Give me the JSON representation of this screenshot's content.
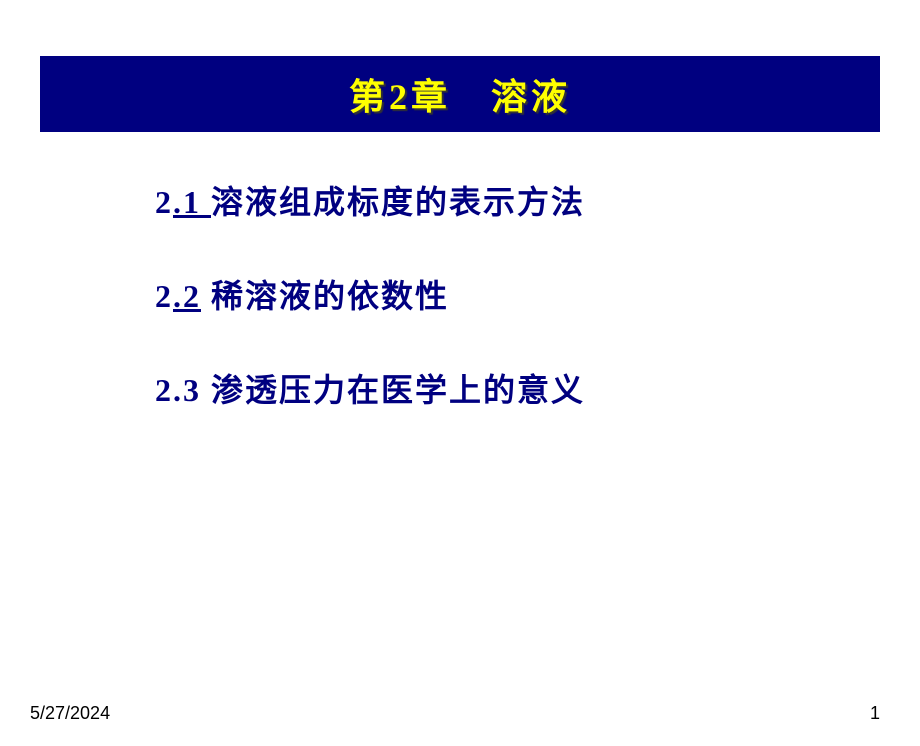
{
  "title": "第2章　溶液",
  "sections": [
    {
      "number": "2",
      "link": ".1 ",
      "text": "溶液组成标度的表示方法",
      "has_link": true
    },
    {
      "number": "2",
      "link": ".2",
      "text": " 稀溶液的依数性",
      "has_link": true
    },
    {
      "number": "2.3 ",
      "link": "",
      "text": "渗透压力在医学上的意义",
      "has_link": false
    }
  ],
  "footer": {
    "date": "5/27/2024",
    "page": "1"
  },
  "colors": {
    "title_bar_bg": "#000080",
    "title_text": "#ffff00",
    "section_text": "#000080",
    "background": "#ffffff"
  }
}
